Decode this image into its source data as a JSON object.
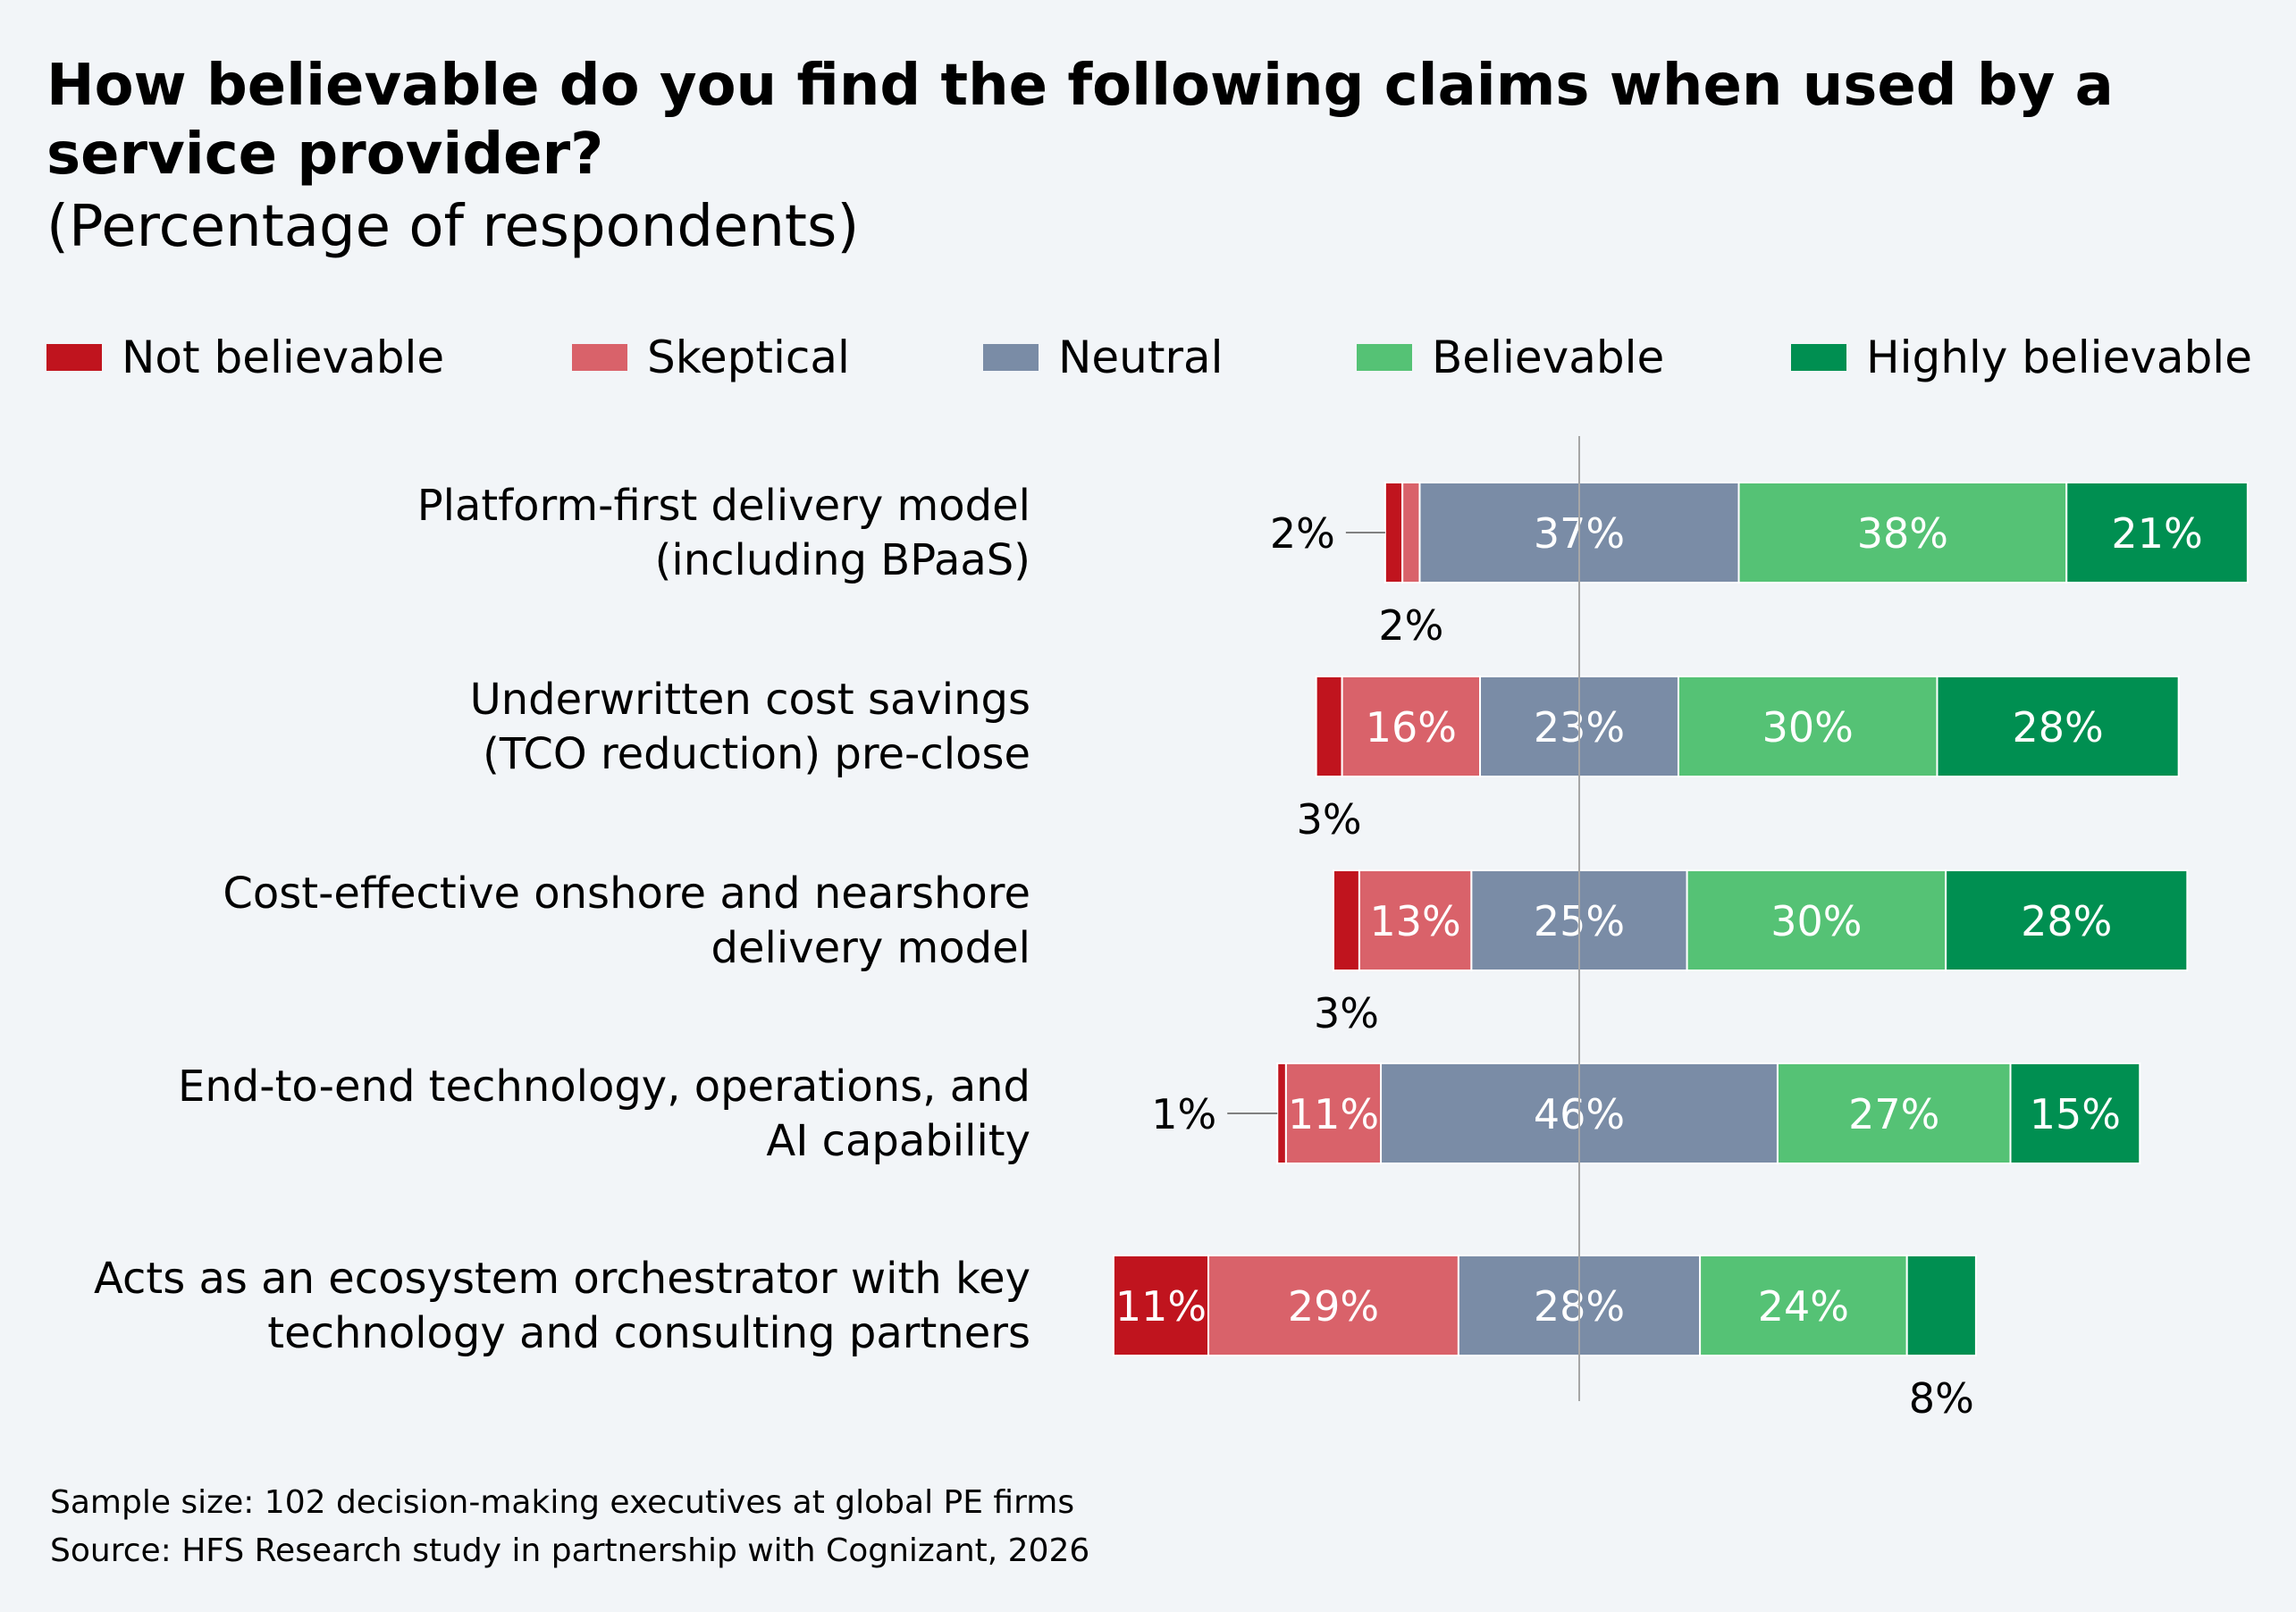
{
  "chart_data": {
    "type": "bar",
    "orientation": "horizontal",
    "stacked": true,
    "title": "How believable do you find the following claims when used by a service provider?",
    "subtitle": "(Percentage of respondents)",
    "categories": [
      [
        "Platform-first delivery model",
        "(including BPaaS)"
      ],
      [
        "Underwritten cost savings",
        "(TCO reduction) pre-close"
      ],
      [
        "Cost-effective onshore and nearshore",
        "delivery model"
      ],
      [
        "End-to-end technology, operations, and",
        "AI capability"
      ],
      [
        "Acts as an ecosystem orchestrator with key",
        "technology and consulting partners"
      ]
    ],
    "series": [
      {
        "name": "Not believable",
        "color": "#c0141e",
        "values": [
          2,
          3,
          3,
          1,
          11
        ],
        "labels": [
          "2%",
          "3%",
          "3%",
          "1%",
          "11%"
        ]
      },
      {
        "name": "Skeptical",
        "color": "#d9626a",
        "values": [
          2,
          16,
          13,
          11,
          29
        ],
        "labels": [
          "2%",
          "16%",
          "13%",
          "11%",
          "29%"
        ]
      },
      {
        "name": "Neutral",
        "color": "#7a8ca6",
        "values": [
          37,
          23,
          25,
          46,
          28
        ],
        "labels": [
          "37%",
          "23%",
          "25%",
          "46%",
          "28%"
        ]
      },
      {
        "name": "Believable",
        "color": "#55c275",
        "values": [
          38,
          30,
          30,
          27,
          24
        ],
        "labels": [
          "38%",
          "30%",
          "30%",
          "27%",
          "24%"
        ]
      },
      {
        "name": "Highly believable",
        "color": "#008f51",
        "values": [
          21,
          28,
          28,
          15,
          8
        ],
        "labels": [
          "21%",
          "28%",
          "28%",
          "15%",
          "8%"
        ]
      }
    ],
    "center_line": "middle of Neutral",
    "legend_position": "top"
  },
  "footnotes": {
    "sample": "Sample size: 102 decision-making executives at global PE firms",
    "source": "Source: HFS Research study in partnership with Cognizant, 2026"
  }
}
